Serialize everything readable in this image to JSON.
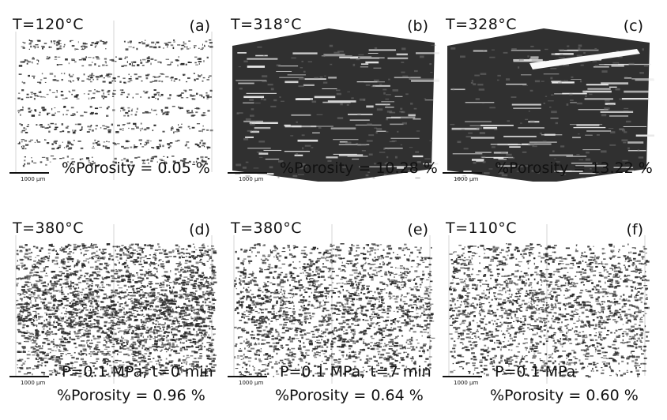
{
  "panels": [
    {
      "label": "(a)",
      "temperature": "T=120°C",
      "scale": "1000 μm",
      "condition": "",
      "porosity": "%Porosity = 0.05 %"
    },
    {
      "label": "(b)",
      "temperature": "T=318°C",
      "scale": "1000 μm",
      "condition": "",
      "porosity": "%Porosity = 10.28 %"
    },
    {
      "label": "(c)",
      "temperature": "T=328°C",
      "scale": "1000 μm",
      "condition": "",
      "porosity": "%Porosity = 13.22 %"
    },
    {
      "label": "(d)",
      "temperature": "T=380°C",
      "scale": "1000 μm",
      "condition": "P=0.1 MPa, t=0 min",
      "porosity": "%Porosity = 0.96 %"
    },
    {
      "label": "(e)",
      "temperature": "T=380°C",
      "scale": "1000 μm",
      "condition": "P=0.1 MPa, t=7 min",
      "porosity": "%Porosity = 0.64 %"
    },
    {
      "label": "(f)",
      "temperature": "T=110°C",
      "scale": "1000 μm",
      "condition": "P=0.1 MPa",
      "porosity": "%Porosity = 0.60 %"
    }
  ],
  "image": {
    "background": "#ffffff",
    "pore_color": "#2a2a2a",
    "description_free": true
  }
}
